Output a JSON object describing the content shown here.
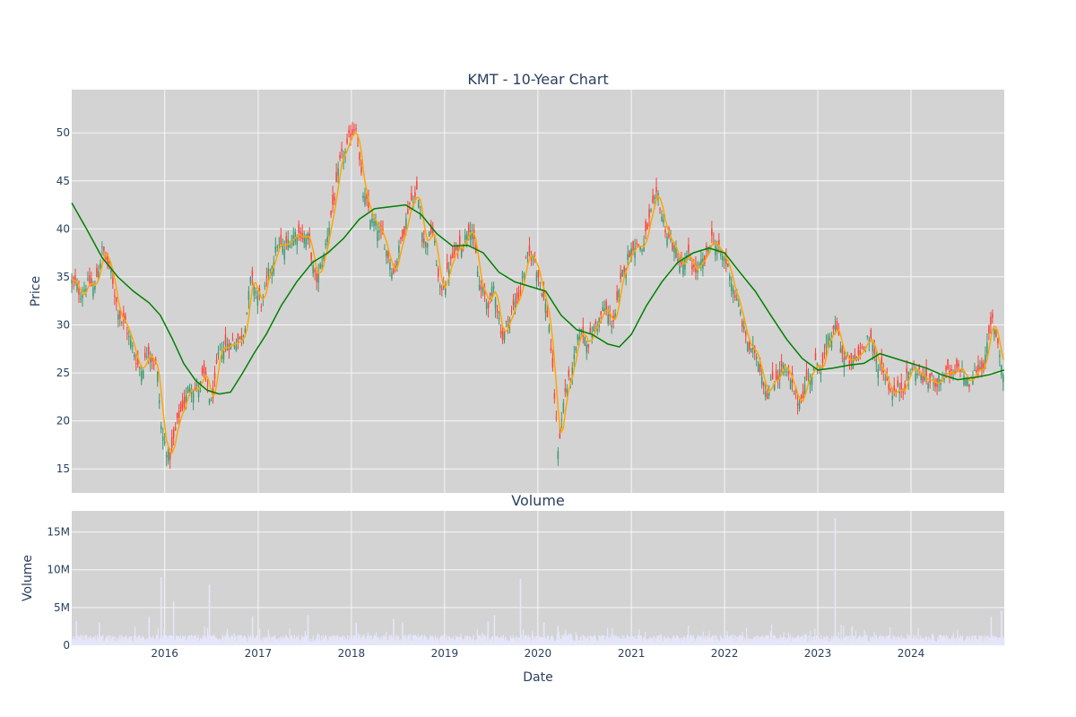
{
  "chart_data": [
    {
      "type": "candlestick",
      "title": "KMT - 10-Year Chart",
      "xlabel": "",
      "ylabel": "Price",
      "xlim": [
        "2015-01-02",
        "2024-12-31"
      ],
      "ylim": [
        12.5,
        54.5
      ],
      "y_ticks": [
        15,
        20,
        25,
        30,
        35,
        40,
        45,
        50
      ],
      "grid": true,
      "colors": {
        "increasing": "#3d9970",
        "decreasing": "#ff4136",
        "ma_short": "#ffa500",
        "ma_long": "#008000",
        "plot_bg": "#d3d3d3"
      },
      "close_path": [
        [
          "2015-01-02",
          34.5
        ],
        [
          "2015-02-01",
          33.0
        ],
        [
          "2015-03-01",
          34.8
        ],
        [
          "2015-04-01",
          33.5
        ],
        [
          "2015-05-01",
          38.0
        ],
        [
          "2015-06-01",
          35.5
        ],
        [
          "2015-07-01",
          32.0
        ],
        [
          "2015-08-01",
          30.0
        ],
        [
          "2015-09-01",
          27.0
        ],
        [
          "2015-10-01",
          25.5
        ],
        [
          "2015-11-01",
          28.0
        ],
        [
          "2015-12-01",
          26.0
        ],
        [
          "2015-12-20",
          18.5
        ],
        [
          "2016-01-20",
          16.0
        ],
        [
          "2016-02-15",
          19.0
        ],
        [
          "2016-03-15",
          22.0
        ],
        [
          "2016-04-15",
          24.0
        ],
        [
          "2016-05-15",
          23.5
        ],
        [
          "2016-06-01",
          24.5
        ],
        [
          "2016-07-01",
          21.5
        ],
        [
          "2016-08-01",
          26.5
        ],
        [
          "2016-09-01",
          28.0
        ],
        [
          "2016-10-01",
          28.5
        ],
        [
          "2016-11-01",
          29.0
        ],
        [
          "2016-12-01",
          34.5
        ],
        [
          "2017-01-15",
          32.0
        ],
        [
          "2017-02-15",
          35.0
        ],
        [
          "2017-03-15",
          38.5
        ],
        [
          "2017-04-15",
          37.5
        ],
        [
          "2017-05-15",
          39.5
        ],
        [
          "2017-06-15",
          40.0
        ],
        [
          "2017-07-15",
          39.0
        ],
        [
          "2017-08-15",
          34.0
        ],
        [
          "2017-09-15",
          37.0
        ],
        [
          "2017-10-15",
          42.0
        ],
        [
          "2017-11-15",
          46.0
        ],
        [
          "2017-12-15",
          48.0
        ],
        [
          "2018-01-20",
          51.5
        ],
        [
          "2018-02-15",
          43.5
        ],
        [
          "2018-03-15",
          41.0
        ],
        [
          "2018-04-15",
          39.5
        ],
        [
          "2018-05-15",
          38.0
        ],
        [
          "2018-06-15",
          36.0
        ],
        [
          "2018-07-15",
          39.0
        ],
        [
          "2018-08-15",
          43.0
        ],
        [
          "2018-09-15",
          44.0
        ],
        [
          "2018-10-15",
          38.5
        ],
        [
          "2018-11-15",
          40.0
        ],
        [
          "2018-12-15",
          33.0
        ],
        [
          "2019-01-15",
          36.0
        ],
        [
          "2019-02-15",
          37.5
        ],
        [
          "2019-03-15",
          39.0
        ],
        [
          "2019-04-15",
          41.5
        ],
        [
          "2019-05-15",
          34.0
        ],
        [
          "2019-06-15",
          32.0
        ],
        [
          "2019-07-15",
          33.5
        ],
        [
          "2019-08-15",
          29.0
        ],
        [
          "2019-09-15",
          31.0
        ],
        [
          "2019-10-15",
          33.0
        ],
        [
          "2019-11-15",
          36.5
        ],
        [
          "2019-12-15",
          37.0
        ],
        [
          "2020-01-15",
          34.5
        ],
        [
          "2020-02-15",
          30.0
        ],
        [
          "2020-03-20",
          17.0
        ],
        [
          "2020-04-15",
          23.0
        ],
        [
          "2020-05-15",
          25.0
        ],
        [
          "2020-06-15",
          29.0
        ],
        [
          "2020-07-15",
          28.5
        ],
        [
          "2020-08-15",
          30.0
        ],
        [
          "2020-09-15",
          31.5
        ],
        [
          "2020-10-15",
          30.0
        ],
        [
          "2020-11-15",
          33.0
        ],
        [
          "2020-12-15",
          37.0
        ],
        [
          "2021-01-15",
          39.0
        ],
        [
          "2021-02-15",
          38.0
        ],
        [
          "2021-03-15",
          41.0
        ],
        [
          "2021-04-15",
          42.5
        ],
        [
          "2021-05-15",
          40.0
        ],
        [
          "2021-06-15",
          38.0
        ],
        [
          "2021-07-15",
          36.0
        ],
        [
          "2021-08-15",
          36.5
        ],
        [
          "2021-09-15",
          35.5
        ],
        [
          "2021-10-15",
          36.0
        ],
        [
          "2021-11-15",
          39.5
        ],
        [
          "2021-12-15",
          37.0
        ],
        [
          "2022-01-15",
          36.0
        ],
        [
          "2022-02-15",
          33.0
        ],
        [
          "2022-03-15",
          29.5
        ],
        [
          "2022-04-15",
          27.0
        ],
        [
          "2022-05-15",
          26.5
        ],
        [
          "2022-06-15",
          23.5
        ],
        [
          "2022-07-15",
          24.5
        ],
        [
          "2022-08-15",
          26.0
        ],
        [
          "2022-09-15",
          23.5
        ],
        [
          "2022-10-15",
          21.5
        ],
        [
          "2022-11-15",
          24.5
        ],
        [
          "2022-12-15",
          25.5
        ],
        [
          "2023-01-15",
          26.0
        ],
        [
          "2023-02-15",
          28.0
        ],
        [
          "2023-03-15",
          29.5
        ],
        [
          "2023-04-15",
          26.5
        ],
        [
          "2023-05-15",
          25.5
        ],
        [
          "2023-06-15",
          27.0
        ],
        [
          "2023-07-15",
          29.5
        ],
        [
          "2023-08-15",
          26.0
        ],
        [
          "2023-09-15",
          25.5
        ],
        [
          "2023-10-15",
          23.5
        ],
        [
          "2023-11-15",
          23.0
        ],
        [
          "2023-12-15",
          25.0
        ],
        [
          "2024-01-15",
          25.5
        ],
        [
          "2024-02-15",
          24.5
        ],
        [
          "2024-03-15",
          24.0
        ],
        [
          "2024-04-15",
          24.5
        ],
        [
          "2024-05-15",
          25.0
        ],
        [
          "2024-06-15",
          24.0
        ],
        [
          "2024-07-15",
          25.5
        ],
        [
          "2024-08-15",
          23.5
        ],
        [
          "2024-09-15",
          25.5
        ],
        [
          "2024-10-15",
          26.5
        ],
        [
          "2024-11-15",
          30.0
        ],
        [
          "2024-12-10",
          28.0
        ],
        [
          "2024-12-31",
          24.0
        ]
      ],
      "ma_long": [
        [
          "2015-01-02",
          42.7
        ],
        [
          "2015-03-01",
          40.0
        ],
        [
          "2015-05-01",
          37.0
        ],
        [
          "2015-07-01",
          35.0
        ],
        [
          "2015-09-01",
          33.5
        ],
        [
          "2015-11-01",
          32.3
        ],
        [
          "2015-12-15",
          31.0
        ],
        [
          "2016-02-01",
          28.5
        ],
        [
          "2016-03-15",
          26.0
        ],
        [
          "2016-05-01",
          24.2
        ],
        [
          "2016-06-15",
          23.2
        ],
        [
          "2016-08-01",
          22.8
        ],
        [
          "2016-09-15",
          23.0
        ],
        [
          "2016-11-01",
          25.0
        ],
        [
          "2016-12-15",
          27.0
        ],
        [
          "2017-02-01",
          29.0
        ],
        [
          "2017-04-01",
          32.0
        ],
        [
          "2017-06-01",
          34.5
        ],
        [
          "2017-08-01",
          36.5
        ],
        [
          "2017-10-01",
          37.5
        ],
        [
          "2017-12-01",
          39.0
        ],
        [
          "2018-02-01",
          41.0
        ],
        [
          "2018-04-01",
          42.1
        ],
        [
          "2018-06-01",
          42.3
        ],
        [
          "2018-08-01",
          42.5
        ],
        [
          "2018-10-01",
          41.5
        ],
        [
          "2018-12-01",
          39.5
        ],
        [
          "2019-02-01",
          38.2
        ],
        [
          "2019-04-01",
          38.3
        ],
        [
          "2019-06-01",
          37.5
        ],
        [
          "2019-08-01",
          35.5
        ],
        [
          "2019-10-01",
          34.5
        ],
        [
          "2019-12-01",
          34.0
        ],
        [
          "2020-02-01",
          33.5
        ],
        [
          "2020-04-01",
          31.0
        ],
        [
          "2020-06-01",
          29.5
        ],
        [
          "2020-08-01",
          29.0
        ],
        [
          "2020-10-01",
          28.0
        ],
        [
          "2020-11-15",
          27.7
        ],
        [
          "2021-01-01",
          29.0
        ],
        [
          "2021-03-01",
          32.0
        ],
        [
          "2021-05-01",
          34.5
        ],
        [
          "2021-07-01",
          36.5
        ],
        [
          "2021-09-01",
          37.5
        ],
        [
          "2021-11-01",
          38.0
        ],
        [
          "2022-01-01",
          37.5
        ],
        [
          "2022-03-01",
          35.5
        ],
        [
          "2022-05-01",
          33.5
        ],
        [
          "2022-07-01",
          31.0
        ],
        [
          "2022-09-01",
          28.5
        ],
        [
          "2022-11-01",
          26.5
        ],
        [
          "2023-01-01",
          25.3
        ],
        [
          "2023-03-01",
          25.5
        ],
        [
          "2023-05-01",
          25.8
        ],
        [
          "2023-07-01",
          26.0
        ],
        [
          "2023-09-01",
          27.0
        ],
        [
          "2023-11-01",
          26.5
        ],
        [
          "2024-01-01",
          26.0
        ],
        [
          "2024-03-01",
          25.5
        ],
        [
          "2024-05-01",
          24.8
        ],
        [
          "2024-07-01",
          24.3
        ],
        [
          "2024-09-01",
          24.5
        ],
        [
          "2024-11-01",
          24.8
        ],
        [
          "2024-12-31",
          25.3
        ]
      ]
    },
    {
      "type": "bar",
      "title": "Volume",
      "xlabel": "Date",
      "ylabel": "Volume",
      "xlim": [
        "2015-01-02",
        "2024-12-31"
      ],
      "ylim": [
        0,
        17.8
      ],
      "y_unit": "M",
      "y_tick_values": [
        0,
        5,
        10,
        15
      ],
      "y_tick_labels": [
        "0",
        "5M",
        "10M",
        "15M"
      ],
      "x_tick_values": [
        "2016-01-01",
        "2017-01-01",
        "2018-01-01",
        "2019-01-01",
        "2020-01-01",
        "2021-01-01",
        "2022-01-01",
        "2023-01-01",
        "2024-01-01"
      ],
      "x_tick_labels": [
        "2016",
        "2017",
        "2018",
        "2019",
        "2020",
        "2021",
        "2022",
        "2023",
        "2024"
      ],
      "colors": {
        "bar": "#e6e6fa",
        "plot_bg": "#d3d3d3"
      },
      "spikes": [
        [
          "2015-01-20",
          3.2
        ],
        [
          "2015-04-20",
          3.0
        ],
        [
          "2015-11-01",
          3.8
        ],
        [
          "2015-12-18",
          9.0
        ],
        [
          "2016-02-05",
          5.8
        ],
        [
          "2016-06-24",
          8.0
        ],
        [
          "2016-12-10",
          3.8
        ],
        [
          "2017-07-15",
          4.0
        ],
        [
          "2018-01-20",
          3.0
        ],
        [
          "2018-06-15",
          3.5
        ],
        [
          "2018-07-20",
          3.0
        ],
        [
          "2019-06-20",
          3.2
        ],
        [
          "2019-07-15",
          4.0
        ],
        [
          "2019-10-25",
          8.8
        ],
        [
          "2020-01-25",
          3.0
        ],
        [
          "2020-03-20",
          2.6
        ],
        [
          "2023-03-10",
          16.8
        ],
        [
          "2023-05-15",
          2.5
        ],
        [
          "2024-11-10",
          3.8
        ],
        [
          "2024-12-20",
          4.6
        ]
      ]
    }
  ]
}
